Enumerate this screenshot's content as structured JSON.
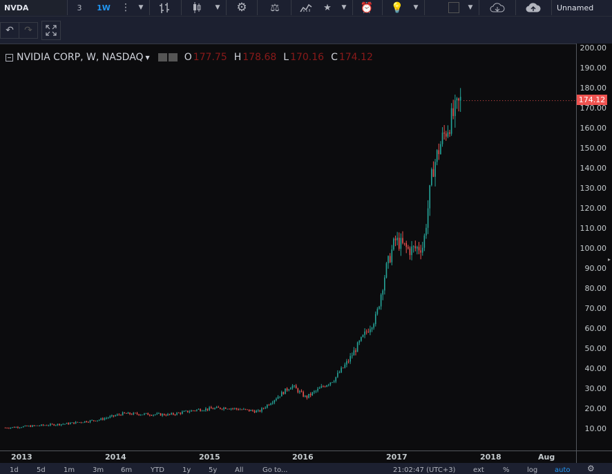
{
  "toolbar": {
    "symbol": "NVDA",
    "interval_3": "3",
    "interval_active": "1W",
    "layout_name": "Unnamed"
  },
  "legend": {
    "title": "NVIDIA CORP, W, NASDAQ",
    "open_label": "O",
    "open": "177.75",
    "high_label": "H",
    "high": "178.68",
    "low_label": "L",
    "low": "170.16",
    "close_label": "C",
    "close": "174.12"
  },
  "price_axis": {
    "ticks": [
      "200.00",
      "190.00",
      "180.00",
      "170.00",
      "160.00",
      "150.00",
      "140.00",
      "130.00",
      "120.00",
      "110.00",
      "100.00",
      "90.00",
      "80.00",
      "70.00",
      "60.00",
      "50.00",
      "40.00",
      "30.00",
      "20.00",
      "10.00"
    ],
    "last_price": "174.12"
  },
  "time_axis": {
    "ticks": [
      "2013",
      "2014",
      "2015",
      "2016",
      "2017",
      "2018",
      "Aug"
    ]
  },
  "bottom": {
    "ranges": [
      "1d",
      "5d",
      "1m",
      "3m",
      "6m",
      "YTD",
      "1y",
      "5y",
      "All"
    ],
    "goto": "Go to...",
    "clock": "21:02:47 (UTC+3)",
    "ext": "ext",
    "percent": "%",
    "log": "log",
    "auto": "auto"
  },
  "colors": {
    "up": "#26a69a",
    "down": "#ef5350",
    "background": "#0c0c0e"
  },
  "chart_data": {
    "type": "ohlc-candlestick",
    "x_unit": "year",
    "y_range": [
      0,
      200
    ],
    "weekly_close_anchors": [
      {
        "x": 2012.85,
        "close": 12.0
      },
      {
        "x": 2013.5,
        "close": 14.0
      },
      {
        "x": 2013.85,
        "close": 16.0
      },
      {
        "x": 2014.1,
        "close": 19.0
      },
      {
        "x": 2014.6,
        "close": 18.5
      },
      {
        "x": 2014.9,
        "close": 21.0
      },
      {
        "x": 2015.2,
        "close": 22.0
      },
      {
        "x": 2015.55,
        "close": 20.0
      },
      {
        "x": 2015.9,
        "close": 33.0
      },
      {
        "x": 2016.05,
        "close": 27.0
      },
      {
        "x": 2016.35,
        "close": 36.0
      },
      {
        "x": 2016.5,
        "close": 45.0
      },
      {
        "x": 2016.7,
        "close": 60.0
      },
      {
        "x": 2016.8,
        "close": 67.0
      },
      {
        "x": 2016.9,
        "close": 90.0
      },
      {
        "x": 2017.0,
        "close": 105.0
      },
      {
        "x": 2017.15,
        "close": 100.0
      },
      {
        "x": 2017.3,
        "close": 102.0
      },
      {
        "x": 2017.4,
        "close": 140.0
      },
      {
        "x": 2017.5,
        "close": 155.0
      },
      {
        "x": 2017.6,
        "close": 165.0
      },
      {
        "x": 2017.7,
        "close": 174.12
      }
    ]
  }
}
